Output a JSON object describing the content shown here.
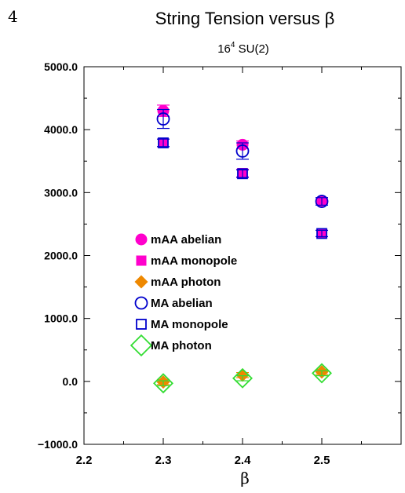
{
  "page_number": "4",
  "chart_data": {
    "type": "scatter",
    "title": "String Tension versus β",
    "subtitle_base": "16",
    "subtitle_exp": "4",
    "subtitle_rest": " SU(2)",
    "xlabel": "β",
    "ylabel": "",
    "xlim": [
      2.2,
      2.6
    ],
    "ylim": [
      -1000,
      5000
    ],
    "xticks": [
      2.2,
      2.3,
      2.4,
      2.5
    ],
    "xtick_labels": [
      "2.2",
      "2.3",
      "2.4",
      "2.5"
    ],
    "yticks": [
      -1000,
      0,
      1000,
      2000,
      3000,
      4000,
      5000
    ],
    "ytick_labels": [
      "−1000.0",
      "0.0",
      "1000.0",
      "2000.0",
      "3000.0",
      "4000.0",
      "5000.0"
    ],
    "grid": false,
    "legend_placement": "center-left",
    "series": [
      {
        "name": "mAA abelian",
        "marker": "circle-filled",
        "color": "#ff00cc",
        "x": [
          2.3,
          2.4,
          2.5
        ],
        "y": [
          4300,
          3760,
          2870
        ],
        "err": [
          90,
          60,
          50
        ]
      },
      {
        "name": "mAA monopole",
        "marker": "square-filled",
        "color": "#ff00cc",
        "x": [
          2.3,
          2.4,
          2.5
        ],
        "y": [
          3790,
          3310,
          2350
        ],
        "err": [
          60,
          60,
          50
        ]
      },
      {
        "name": "mAA photon",
        "marker": "diamond-filled",
        "color": "#ee8800",
        "x": [
          2.3,
          2.4,
          2.5
        ],
        "y": [
          -10,
          100,
          150
        ],
        "err": [
          40,
          40,
          40
        ]
      },
      {
        "name": "MA abelian",
        "marker": "circle-open",
        "color": "#0000cc",
        "x": [
          2.3,
          2.4,
          2.5
        ],
        "y": [
          4170,
          3660,
          2860
        ],
        "err": [
          150,
          130,
          60
        ]
      },
      {
        "name": "MA monopole",
        "marker": "square-open",
        "color": "#0000cc",
        "x": [
          2.3,
          2.4,
          2.5
        ],
        "y": [
          3790,
          3300,
          2350
        ],
        "err": [
          60,
          60,
          50
        ]
      },
      {
        "name": "MA photon",
        "marker": "diamond-open",
        "color": "#33dd33",
        "x": [
          2.3,
          2.4,
          2.5
        ],
        "y": [
          -30,
          50,
          130
        ],
        "err": [
          40,
          40,
          40
        ]
      }
    ]
  }
}
